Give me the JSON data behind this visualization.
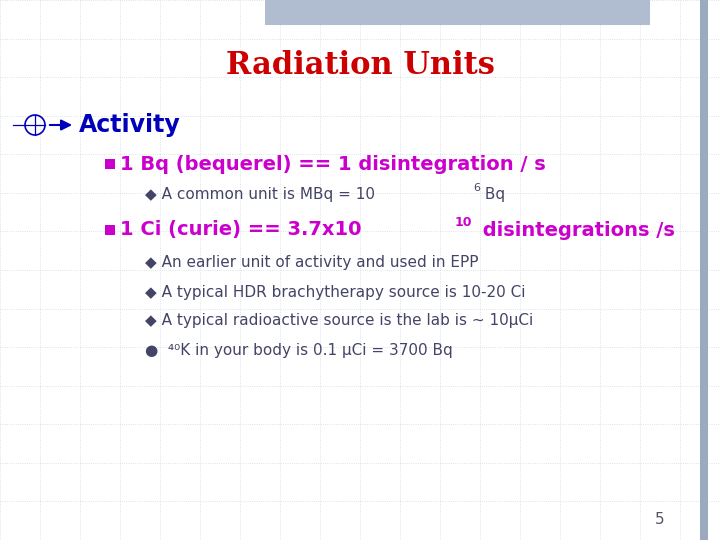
{
  "title": "Radiation Units",
  "title_color": "#CC0000",
  "title_fontsize": 22,
  "bg_color": "#FFFFFF",
  "grid_color": "#C8D0DC",
  "slide_number": "5",
  "activity_color": "#0000BB",
  "activity_fontsize": 17,
  "bullet1_color": "#CC00CC",
  "bullet1_fontsize": 14,
  "sub1_color": "#444466",
  "sub1_fontsize": 11,
  "bullet2_color": "#CC00CC",
  "bullet2_fontsize": 14,
  "sub2_color": "#444466",
  "sub2_fontsize": 11,
  "top_bar_color": "#B0BDD0",
  "right_bar_color": "#9BAABF",
  "sub2a_text": "◆ An earlier unit of activity and used in EPP",
  "sub2b_text": "◆ A typical HDR brachytherapy source is 10-20 Ci",
  "sub2c_text": "◆ A typical radioactive source is the lab is ~ 10μCi",
  "sub2d_text": "●  ⁴⁰K in your body is 0.1 μCi = 3700 Bq"
}
